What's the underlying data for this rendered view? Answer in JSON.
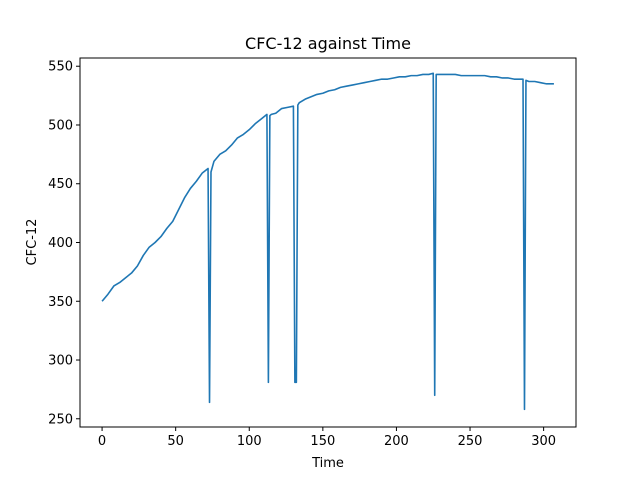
{
  "chart_data": {
    "type": "line",
    "title": "CFC-12 against Time",
    "xlabel": "Time",
    "ylabel": "CFC-12",
    "xlim": [
      -15,
      322
    ],
    "ylim": [
      243,
      557
    ],
    "xticks": [
      0,
      50,
      100,
      150,
      200,
      250,
      300
    ],
    "yticks": [
      250,
      300,
      350,
      400,
      450,
      500,
      550
    ],
    "grid": false,
    "line_color": "#1f77b4",
    "series": [
      {
        "x": [
          0,
          4,
          8,
          12,
          16,
          20,
          24,
          28,
          32,
          36,
          40,
          44,
          48,
          52,
          56,
          60,
          64,
          68,
          72,
          73,
          74,
          76,
          80,
          84,
          88,
          92,
          96,
          100,
          104,
          108,
          112,
          113,
          114,
          115,
          118,
          122,
          126,
          130,
          131,
          132,
          133,
          134,
          138,
          142,
          146,
          150,
          154,
          158,
          162,
          166,
          170,
          174,
          178,
          182,
          186,
          190,
          194,
          198,
          202,
          206,
          210,
          214,
          218,
          222,
          225,
          226,
          227,
          228,
          232,
          236,
          240,
          244,
          248,
          252,
          256,
          260,
          264,
          268,
          272,
          276,
          280,
          284,
          286,
          287,
          288,
          290,
          294,
          298,
          302,
          307
        ],
        "y": [
          350,
          356,
          363,
          366,
          370,
          374,
          380,
          389,
          396,
          400,
          405,
          412,
          418,
          428,
          438,
          446,
          452,
          459,
          463,
          264,
          460,
          469,
          475,
          478,
          483,
          489,
          492,
          496,
          501,
          505,
          509,
          281,
          508,
          509,
          510,
          514,
          515,
          516,
          281,
          281,
          517,
          519,
          522,
          524,
          526,
          527,
          529,
          530,
          532,
          533,
          534,
          535,
          536,
          537,
          538,
          539,
          539,
          540,
          541,
          541,
          542,
          542,
          543,
          543,
          544,
          270,
          543,
          543,
          543,
          543,
          543,
          542,
          542,
          542,
          542,
          542,
          541,
          541,
          540,
          540,
          539,
          539,
          539,
          258,
          538,
          537,
          537,
          536,
          535,
          535
        ]
      }
    ]
  }
}
